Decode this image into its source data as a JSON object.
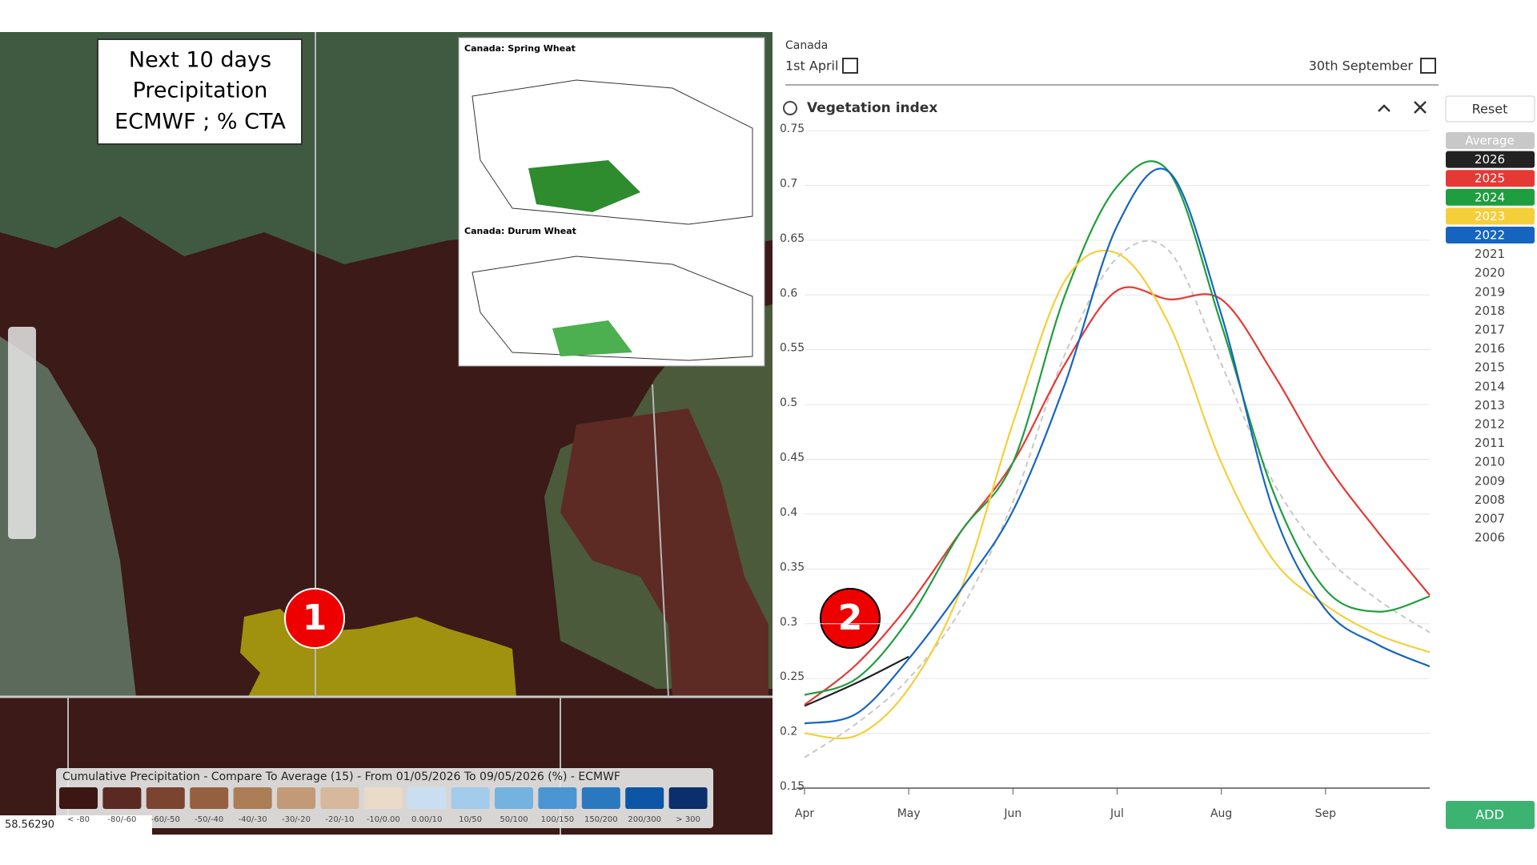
{
  "map": {
    "annotation": [
      "Next 10 days",
      "Precipitation",
      "ECMWF ; % CTA"
    ],
    "markers": [
      "1",
      "2"
    ],
    "inset": {
      "titles": [
        "Canada:  Spring Wheat",
        "Canada:  Durum Wheat"
      ]
    },
    "legend": {
      "title": "Cumulative Precipitation - Compare To Average (15) - From 01/05/2026 To 09/05/2026 (%) - ECMWF",
      "classes": [
        {
          "label": "< -80",
          "color": "#3b1612"
        },
        {
          "label": "-80/-60",
          "color": "#5a2a22"
        },
        {
          "label": "-60/-50",
          "color": "#7a4431"
        },
        {
          "label": "-50/-40",
          "color": "#94603f"
        },
        {
          "label": "-40/-30",
          "color": "#ad7d56"
        },
        {
          "label": "-30/-20",
          "color": "#c39a78"
        },
        {
          "label": "-20/-10",
          "color": "#d7b89c"
        },
        {
          "label": "-10/0.00",
          "color": "#eadbc8"
        },
        {
          "label": "0.00/10",
          "color": "#c9dff1"
        },
        {
          "label": "10/50",
          "color": "#a3cbea"
        },
        {
          "label": "50/100",
          "color": "#74b2e0"
        },
        {
          "label": "100/150",
          "color": "#4b96d2"
        },
        {
          "label": "150/200",
          "color": "#2a78c0"
        },
        {
          "label": "200/300",
          "color": "#0d55a6"
        },
        {
          "label": "> 300",
          "color": "#0a2f6c"
        }
      ]
    },
    "coordinates": "58.56290"
  },
  "panel": {
    "region": "Canada",
    "start_date": "1st April",
    "end_date": "30th September",
    "reset": "Reset",
    "add": "ADD",
    "other_years": [
      "2021",
      "2020",
      "2019",
      "2018",
      "2017",
      "2016",
      "2015",
      "2014",
      "2013",
      "2012",
      "2011",
      "2010",
      "2009",
      "2008",
      "2007",
      "2006"
    ]
  },
  "chart_data": {
    "type": "line",
    "title": "Vegetation index",
    "categories": [
      "Apr",
      null,
      "May",
      null,
      "Jun",
      null,
      "Jul",
      null,
      "Aug",
      null,
      "Sep",
      null,
      null
    ],
    "ylim": [
      0.15,
      0.75
    ],
    "yticks": [
      0.15,
      0.2,
      0.25,
      0.3,
      0.35,
      0.4,
      0.45,
      0.5,
      0.55,
      0.6,
      0.65,
      0.7,
      0.75
    ],
    "grid": true,
    "series": [
      {
        "name": "Average",
        "color": "#c8c8c8",
        "dashed": true,
        "values": [
          0.178,
          0.209,
          0.25,
          0.313,
          0.411,
          0.546,
          0.634,
          0.64,
          0.537,
          0.429,
          0.362,
          0.322,
          0.292
        ]
      },
      {
        "name": "2026",
        "color": "#222222",
        "values": [
          0.225,
          0.246,
          0.27,
          null,
          null,
          null,
          null,
          null,
          null,
          null,
          null,
          null,
          null
        ]
      },
      {
        "name": "2025",
        "color": "#e53935",
        "values": [
          0.226,
          0.263,
          0.317,
          0.384,
          0.447,
          0.537,
          0.604,
          0.596,
          0.596,
          0.528,
          0.447,
          0.384,
          0.326
        ]
      },
      {
        "name": "2024",
        "color": "#1e9e3e",
        "values": [
          0.235,
          0.25,
          0.304,
          0.384,
          0.447,
          0.6,
          0.699,
          0.712,
          0.573,
          0.42,
          0.331,
          0.311,
          0.325
        ]
      },
      {
        "name": "2023",
        "color": "#f5cf3a",
        "values": [
          0.2,
          0.198,
          0.241,
          0.331,
          0.483,
          0.613,
          0.638,
          0.573,
          0.447,
          0.358,
          0.317,
          0.29,
          0.274
        ]
      },
      {
        "name": "2022",
        "color": "#1565c0",
        "values": [
          0.209,
          0.218,
          0.268,
          0.331,
          0.403,
          0.519,
          0.663,
          0.712,
          0.582,
          0.403,
          0.313,
          0.281,
          0.261
        ]
      }
    ]
  }
}
